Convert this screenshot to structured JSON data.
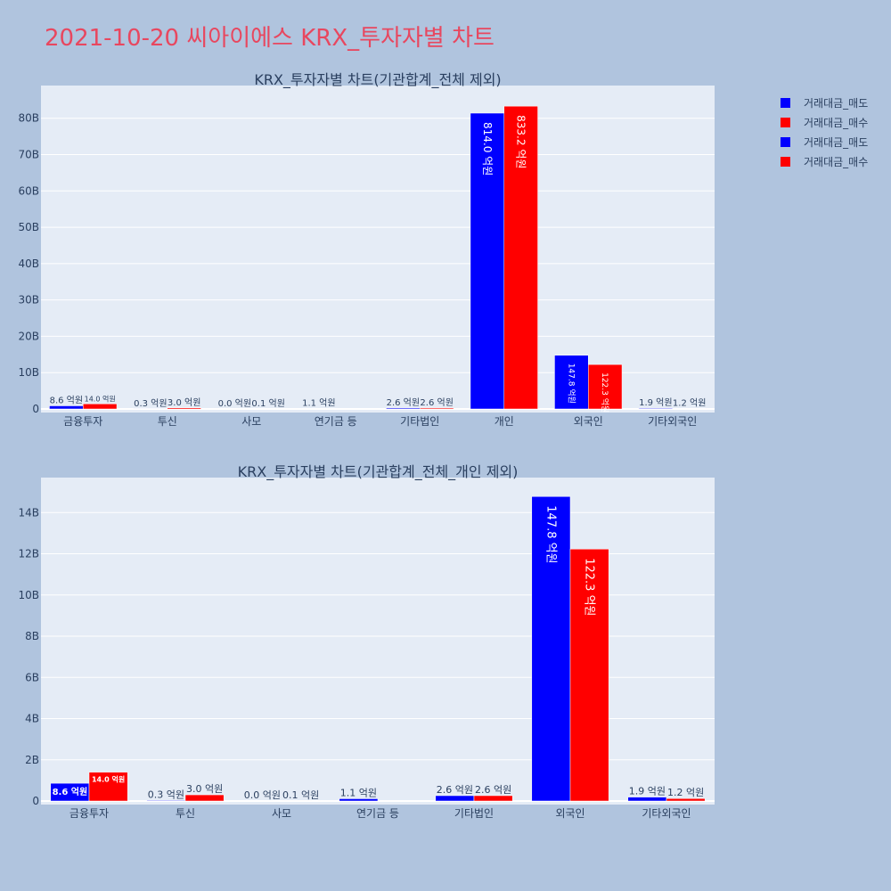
{
  "page_title": "2021-10-20 씨아이에스 KRX_투자자별 차트",
  "colors": {
    "background": "#b0c4de",
    "plot_bg": "#e5ecf6",
    "title": "#e8475f",
    "sell": "#0000ff",
    "buy": "#ff0000",
    "text": "#2a3f5f"
  },
  "legend": [
    {
      "label": "거래대금_매도",
      "color": "#0000ff"
    },
    {
      "label": "거래대금_매수",
      "color": "#ff0000"
    },
    {
      "label": "거래대금_매도",
      "color": "#0000ff"
    },
    {
      "label": "거래대금_매수",
      "color": "#ff0000"
    }
  ],
  "chart_data": [
    {
      "type": "bar",
      "title": "KRX_투자자별 차트(기관합계_전체 제외)",
      "categories": [
        "금융투자",
        "투신",
        "사모",
        "연기금 등",
        "기타법인",
        "개인",
        "외국인",
        "기타외국인"
      ],
      "series": [
        {
          "name": "거래대금_매도",
          "color": "#0000ff",
          "values": [
            0.86,
            0.03,
            0.0,
            0.11,
            0.26,
            81.4,
            14.78,
            0.19
          ],
          "labels": [
            "8.6 억원",
            "0.3 억원",
            "0.0 억원",
            "1.1 억원",
            "2.6 억원",
            "814.0 억원",
            "147.8 억원",
            "1.9 억원"
          ]
        },
        {
          "name": "거래대금_매수",
          "color": "#ff0000",
          "values": [
            1.4,
            0.3,
            0.01,
            0.0,
            0.26,
            83.32,
            12.23,
            0.12
          ],
          "labels": [
            "14.0 억원",
            "3.0 억원",
            "0.1 억원",
            "",
            "2.6 억원",
            "833.2 억원",
            "122.3 억원",
            "1.2 억원"
          ]
        }
      ],
      "ylim": [
        0,
        89
      ],
      "yticks": [
        0,
        10,
        20,
        30,
        40,
        50,
        60,
        70,
        80
      ],
      "ytick_labels": [
        "0",
        "10B",
        "20B",
        "30B",
        "40B",
        "50B",
        "60B",
        "70B",
        "80B"
      ],
      "grid": true
    },
    {
      "type": "bar",
      "title": "KRX_투자자별 차트(기관합계_전체_개인 제외)",
      "categories": [
        "금융투자",
        "투신",
        "사모",
        "연기금 등",
        "기타법인",
        "외국인",
        "기타외국인"
      ],
      "series": [
        {
          "name": "거래대금_매도",
          "color": "#0000ff",
          "values": [
            0.86,
            0.03,
            0.0,
            0.11,
            0.26,
            14.78,
            0.19
          ],
          "labels": [
            "8.6 억원",
            "0.3 억원",
            "0.0 억원",
            "1.1 억원",
            "2.6 억원",
            "147.8 억원",
            "1.9 억원"
          ]
        },
        {
          "name": "거래대금_매수",
          "color": "#ff0000",
          "values": [
            1.4,
            0.3,
            0.01,
            0.0,
            0.26,
            12.23,
            0.12
          ],
          "labels": [
            "14.0 억원",
            "3.0 억원",
            "0.1 억원",
            "",
            "2.6 억원",
            "122.3 억원",
            "1.2 억원"
          ]
        }
      ],
      "ylim": [
        0,
        15.7
      ],
      "yticks": [
        0,
        2,
        4,
        6,
        8,
        10,
        12,
        14
      ],
      "ytick_labels": [
        "0",
        "2B",
        "4B",
        "6B",
        "8B",
        "10B",
        "12B",
        "14B"
      ],
      "grid": true
    }
  ]
}
